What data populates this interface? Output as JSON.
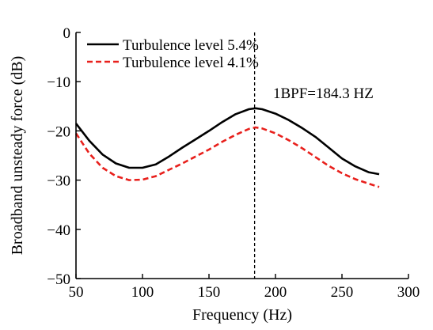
{
  "chart_data": {
    "type": "line",
    "xlabel": "Frequency (Hz)",
    "ylabel": "Broadband unsteady force (dB)",
    "xlim": [
      50,
      300
    ],
    "ylim": [
      -50,
      0
    ],
    "xticks": [
      50,
      100,
      150,
      200,
      250,
      300
    ],
    "yticks": [
      0,
      -10,
      -20,
      -30,
      -40,
      -50
    ],
    "xtick_labels": [
      "50",
      "100",
      "150",
      "200",
      "250",
      "300"
    ],
    "ytick_labels": [
      "0",
      "−10",
      "−20",
      "−30",
      "−40",
      "−50"
    ],
    "grid": false,
    "legend_position": "top-left",
    "series": [
      {
        "name": "Turbulence level 5.4%",
        "color": "#000000",
        "style": "solid",
        "x": [
          50,
          60,
          70,
          80,
          90,
          100,
          110,
          120,
          130,
          140,
          150,
          160,
          170,
          180,
          185,
          190,
          200,
          210,
          220,
          230,
          240,
          250,
          260,
          270,
          278
        ],
        "y": [
          -18.5,
          -22.0,
          -24.8,
          -26.6,
          -27.5,
          -27.5,
          -26.8,
          -25.2,
          -23.4,
          -21.7,
          -20.0,
          -18.2,
          -16.6,
          -15.6,
          -15.4,
          -15.6,
          -16.5,
          -17.8,
          -19.4,
          -21.2,
          -23.4,
          -25.6,
          -27.2,
          -28.4,
          -28.8
        ]
      },
      {
        "name": "Turbulence level 4.1%",
        "color": "#e8201c",
        "style": "dashed",
        "x": [
          50,
          60,
          70,
          80,
          90,
          100,
          110,
          120,
          130,
          140,
          150,
          160,
          170,
          180,
          185,
          190,
          200,
          210,
          220,
          230,
          240,
          250,
          260,
          270,
          278
        ],
        "y": [
          -20.5,
          -24.6,
          -27.5,
          -29.2,
          -30.0,
          -29.9,
          -29.2,
          -27.9,
          -26.6,
          -25.2,
          -23.8,
          -22.2,
          -20.8,
          -19.6,
          -19.3,
          -19.5,
          -20.5,
          -21.9,
          -23.5,
          -25.3,
          -27.1,
          -28.6,
          -29.8,
          -30.7,
          -31.4
        ]
      }
    ],
    "reference_line": {
      "x": 184.3,
      "style": "dashed",
      "color": "#000000"
    },
    "annotation": "1BPF=184.3 HZ"
  }
}
